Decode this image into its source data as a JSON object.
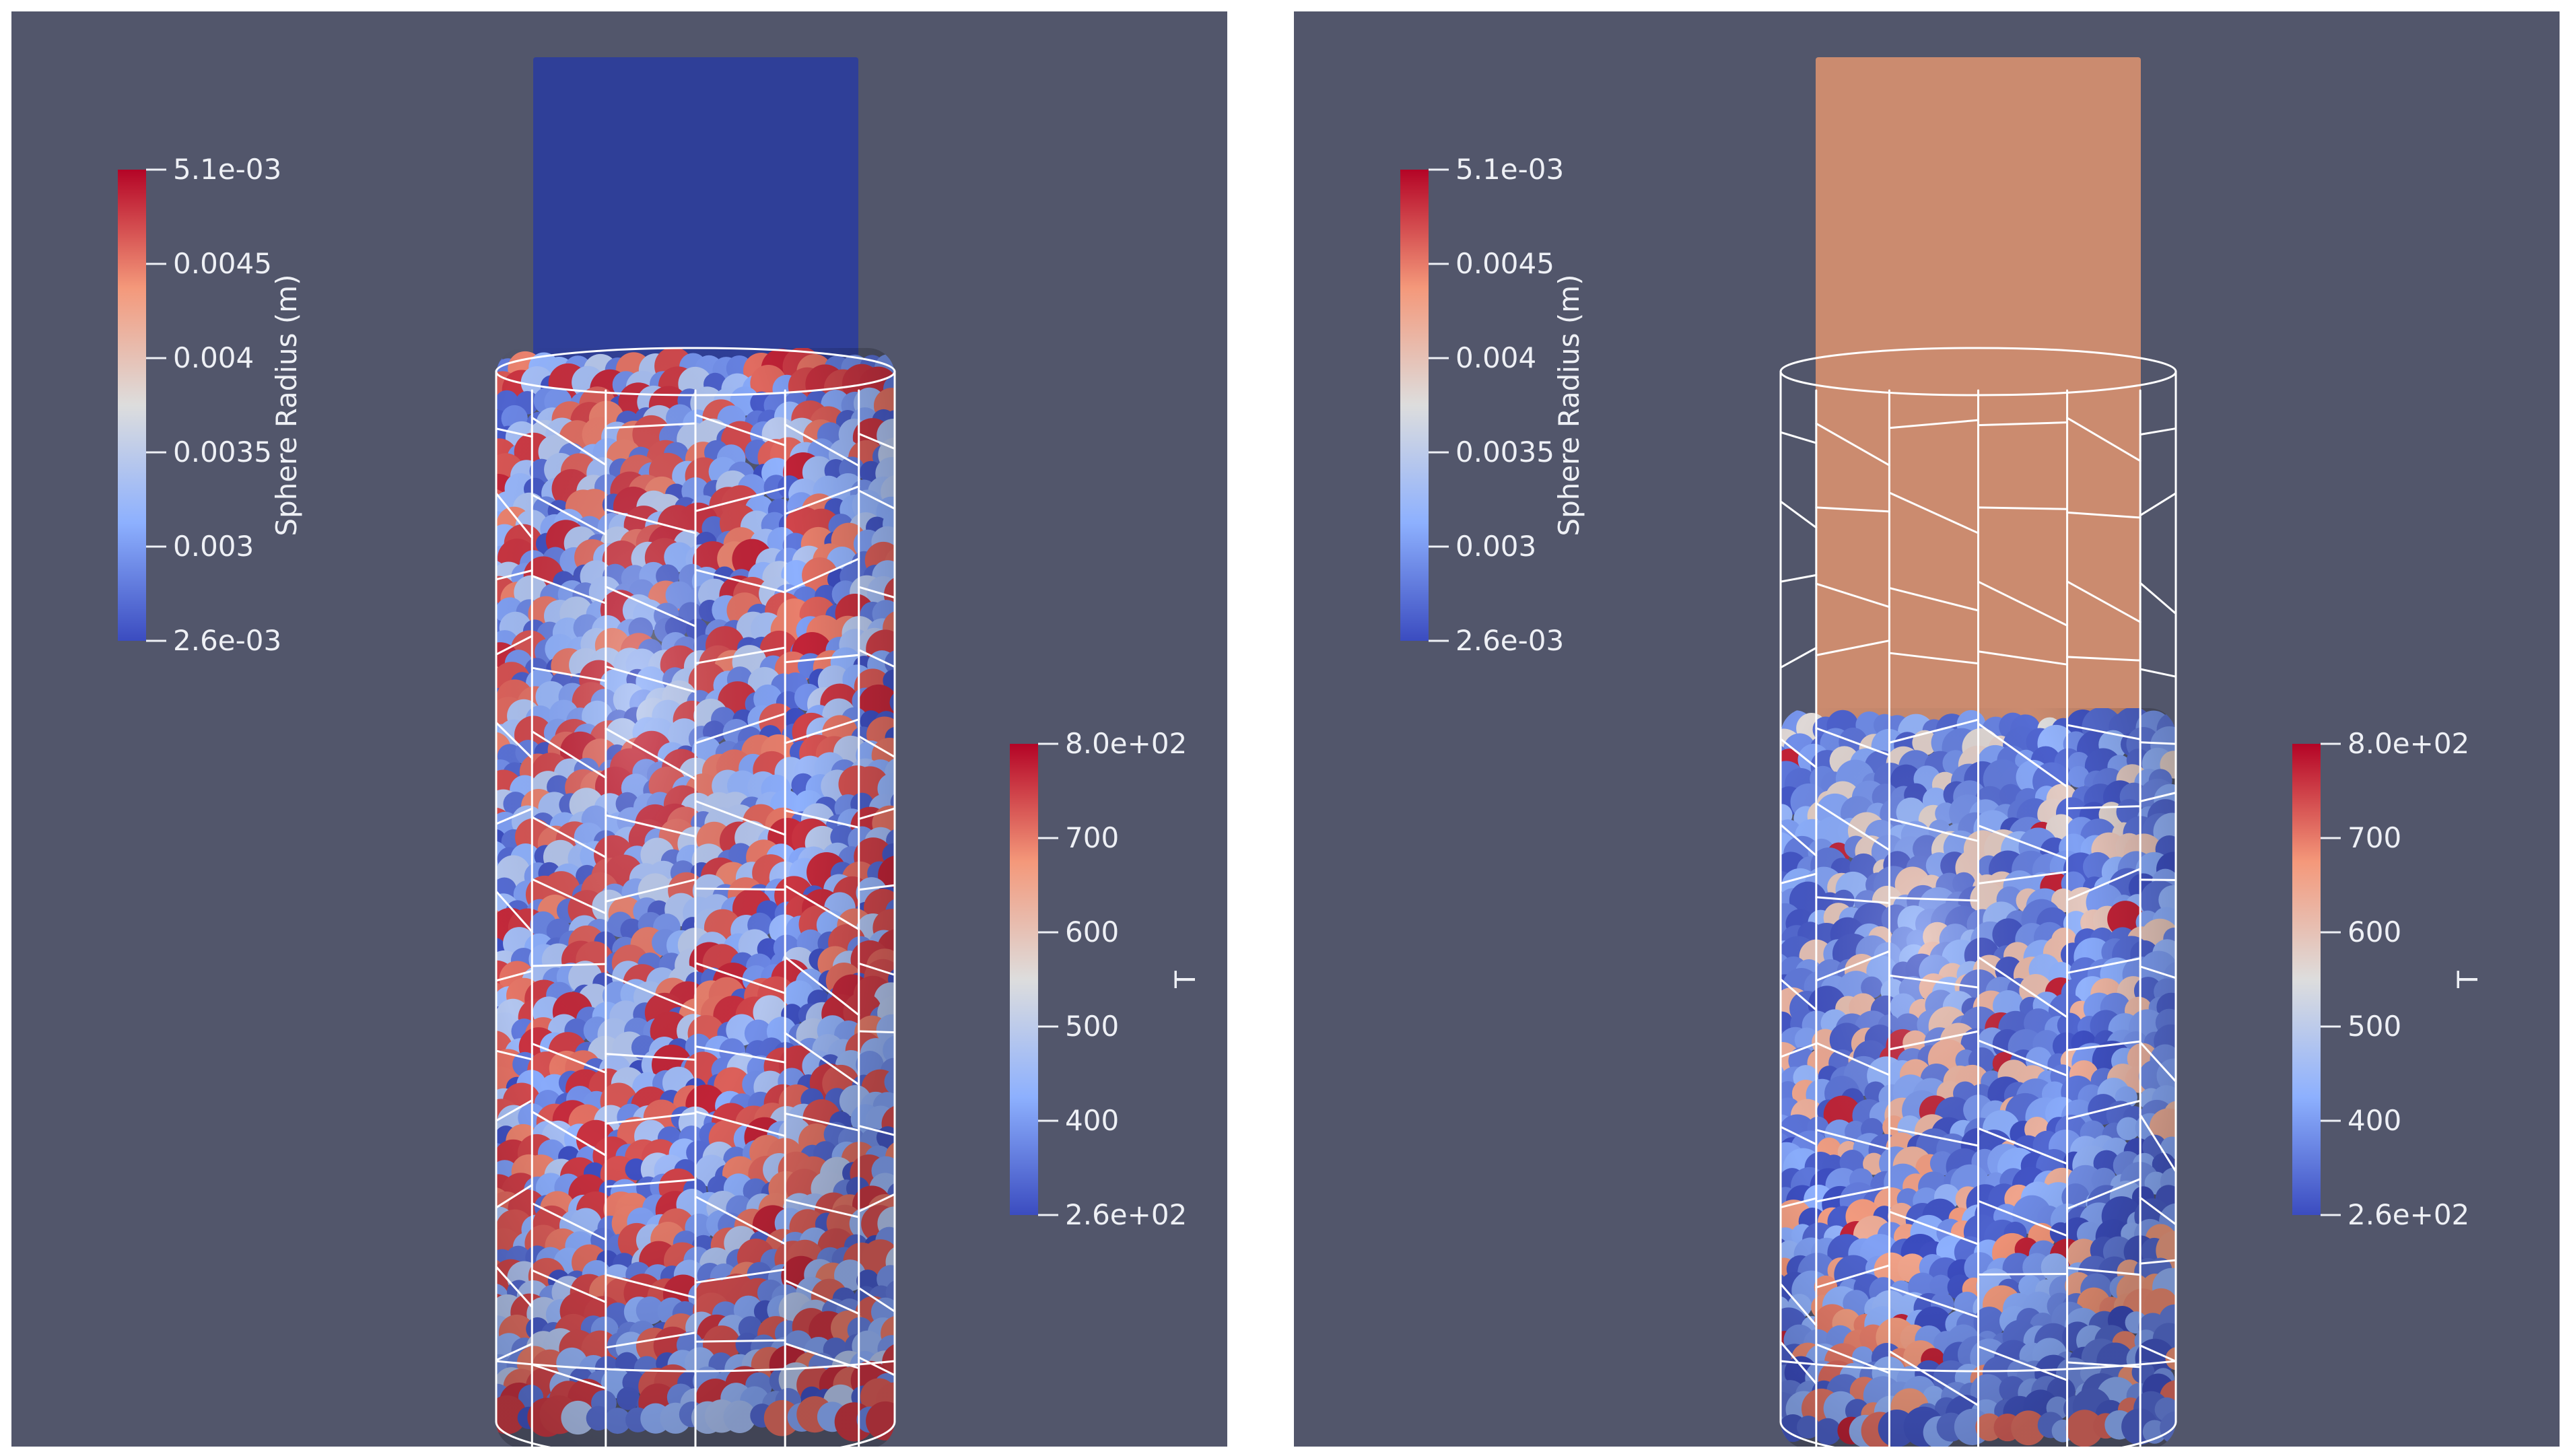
{
  "panels": [
    {
      "id": "left",
      "piston_color": "#2f3f98",
      "particle_palette": "radius",
      "radius_bar": {
        "title": "Sphere Radius (m)",
        "ticks": [
          "5.1e-03",
          "0.0045",
          "0.004",
          "0.0035",
          "0.003",
          "2.6e-03"
        ]
      },
      "temp_bar": {
        "title": "T",
        "ticks": [
          "8.0e+02",
          "700",
          "600",
          "500",
          "400",
          "2.6e+02"
        ]
      }
    },
    {
      "id": "right",
      "piston_color": "#cb8b6f",
      "particle_palette": "temperature",
      "radius_bar": {
        "title": "Sphere Radius (m)",
        "ticks": [
          "5.1e-03",
          "0.0045",
          "0.004",
          "0.0035",
          "0.003",
          "2.6e-03"
        ]
      },
      "temp_bar": {
        "title": "T",
        "ticks": [
          "8.0e+02",
          "700",
          "600",
          "500",
          "400",
          "2.6e+02"
        ]
      }
    }
  ],
  "colormap": {
    "stops": [
      "#3b4cc0",
      "#8db0fe",
      "#dddddd",
      "#f4987a",
      "#b40426"
    ],
    "background": "#52566b",
    "wireframe": "#ffffff"
  }
}
